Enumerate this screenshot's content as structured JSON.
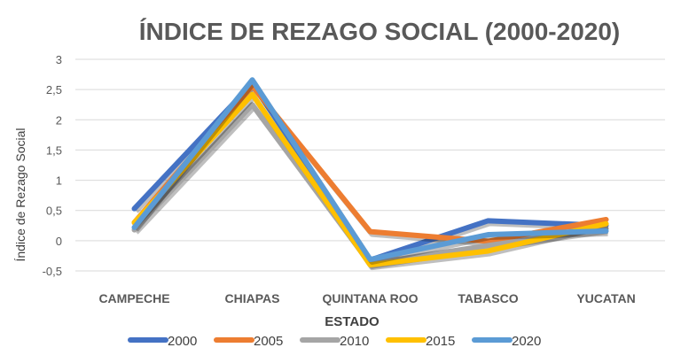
{
  "chart_data": {
    "type": "line",
    "title": "ÍNDICE DE REZAGO SOCIAL (2000-2020)",
    "xlabel": "ESTADO",
    "ylabel": "Índice de Rezago Social",
    "categories": [
      "CAMPECHE",
      "CHIAPAS",
      "QUINTANA ROO",
      "TABASCO",
      "YUCATAN"
    ],
    "ylim": [
      -0.5,
      3
    ],
    "yticks": [
      -0.5,
      0,
      0.5,
      1,
      1.5,
      2,
      2.5,
      3
    ],
    "ytick_labels": [
      "-0,5",
      "0",
      "0,5",
      "1",
      "1,5",
      "2",
      "2,5",
      "3"
    ],
    "grid": true,
    "legend": "bottom",
    "series": [
      {
        "name": "2000",
        "color": "#4472C4",
        "values": [
          0.53,
          2.6,
          -0.32,
          0.33,
          0.25
        ]
      },
      {
        "name": "2005",
        "color": "#ED7D31",
        "values": [
          0.3,
          2.56,
          0.15,
          -0.01,
          0.35
        ]
      },
      {
        "name": "2010",
        "color": "#A5A5A5",
        "values": [
          0.18,
          2.25,
          -0.38,
          -0.08,
          0.2
        ]
      },
      {
        "name": "2015",
        "color": "#FFC000",
        "values": [
          0.3,
          2.42,
          -0.4,
          -0.17,
          0.28
        ]
      },
      {
        "name": "2020",
        "color": "#5B9BD5",
        "values": [
          0.22,
          2.66,
          -0.31,
          0.1,
          0.16
        ]
      }
    ]
  }
}
